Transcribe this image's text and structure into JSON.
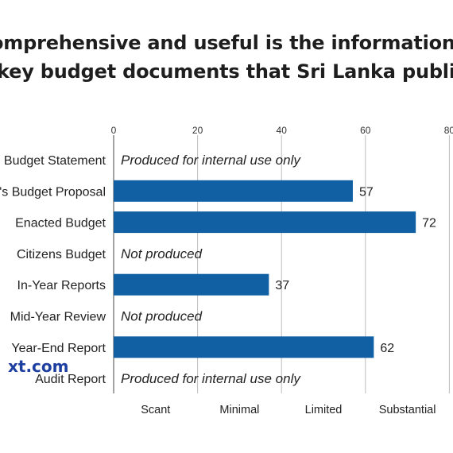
{
  "chart_data": {
    "type": "bar",
    "orientation": "horizontal",
    "title_lines": [
      "omprehensive and useful is the information pro",
      "key budget documents that Sri Lanka publishe"
    ],
    "categories": [
      "Budget Statement",
      "'s Budget Proposal",
      "Enacted Budget",
      "Citizens Budget",
      "In-Year Reports",
      "Mid-Year Review",
      "Year-End Report",
      "Audit Report"
    ],
    "values": [
      null,
      57,
      72,
      null,
      37,
      null,
      62,
      null
    ],
    "value_labels": [
      "",
      "57",
      "72",
      "",
      "37",
      "",
      "62",
      ""
    ],
    "notes": [
      "Produced for internal use only",
      "",
      "",
      "Not produced",
      "",
      "Not produced",
      "",
      "Produced for internal use only"
    ],
    "x_ticks": [
      "0",
      "20",
      "40",
      "60",
      "80"
    ],
    "xlim": [
      0,
      80
    ],
    "bands": [
      "Scant",
      "Minimal",
      "Limited",
      "Substantial"
    ],
    "band_edges": [
      0,
      20,
      40,
      60,
      80
    ],
    "bar_color": "#1260a4",
    "grid": "vertical"
  },
  "watermark": "xt.com"
}
